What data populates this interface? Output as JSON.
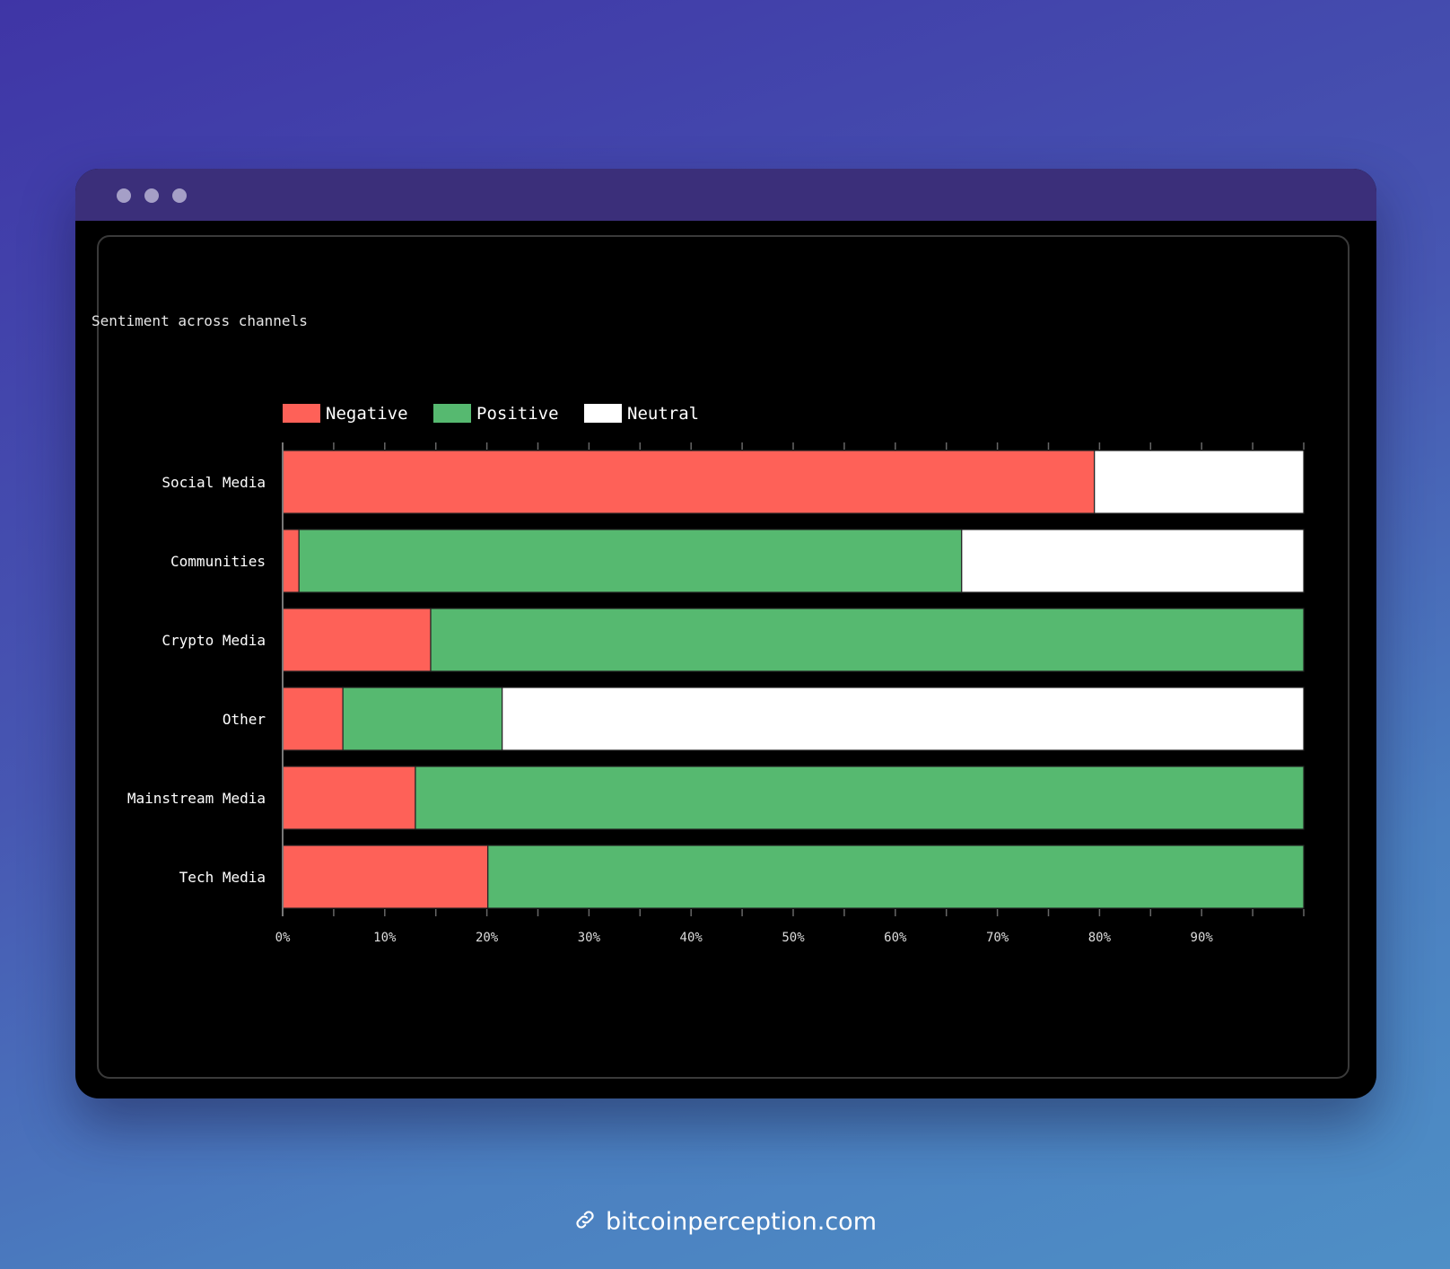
{
  "window": {
    "controls": [
      "close",
      "minimize",
      "maximize"
    ]
  },
  "footer": {
    "icon": "link-icon",
    "url": "bitcoinperception.com"
  },
  "chart_data": {
    "type": "bar",
    "orientation": "horizontal",
    "stacked": true,
    "title": "Sentiment across channels",
    "xlabel": "",
    "ylabel": "",
    "xlim": [
      0,
      100
    ],
    "x_ticks": [
      "0%",
      "10%",
      "20%",
      "30%",
      "40%",
      "50%",
      "60%",
      "70%",
      "80%",
      "90%"
    ],
    "categories": [
      "Social Media",
      "Communities",
      "Crypto Media",
      "Other",
      "Mainstream Media",
      "Tech Media"
    ],
    "series": [
      {
        "name": "Negative",
        "color": "#fe6158",
        "values": [
          79.5,
          1.6,
          14.5,
          5.9,
          13.0,
          20.1
        ]
      },
      {
        "name": "Positive",
        "color": "#56b970",
        "values": [
          0,
          64.9,
          85.5,
          15.6,
          87.0,
          79.9
        ]
      },
      {
        "name": "Neutral",
        "color": "#ffffff",
        "values": [
          20.5,
          33.5,
          0,
          78.5,
          0,
          0
        ]
      }
    ],
    "legend_position": "top-left",
    "grid": false,
    "background": "#000000"
  }
}
